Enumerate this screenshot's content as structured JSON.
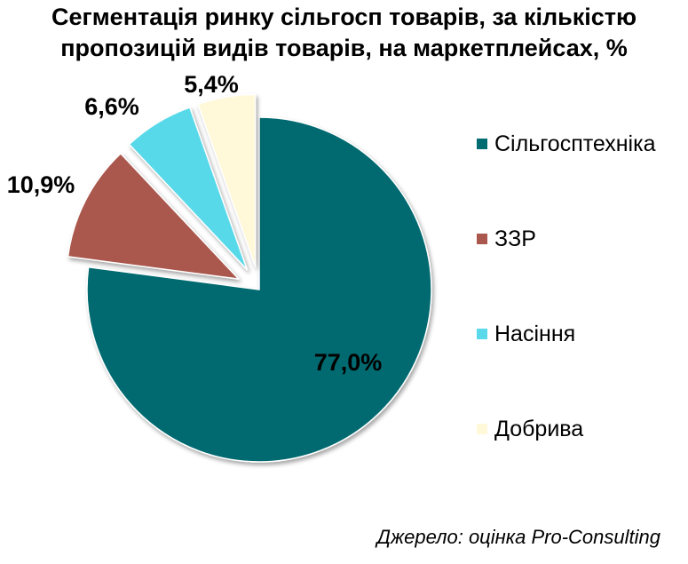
{
  "chart_data": {
    "type": "pie",
    "title_lines": [
      "Сегментація ринку сільгосп товарів, за кількістю",
      "пропозицій видів товарів, на маркетплейсах, %"
    ],
    "slices": [
      {
        "name": "Сільгосптехніка",
        "value": 77.0,
        "label": "77,0%",
        "color": "#006B70",
        "exploded": false
      },
      {
        "name": "ЗЗР",
        "value": 10.9,
        "label": "10,9%",
        "color": "#AA584D",
        "exploded": true
      },
      {
        "name": "Насіння",
        "value": 6.6,
        "label": "6,6%",
        "color": "#59D9EA",
        "exploded": true
      },
      {
        "name": "Добрива",
        "value": 5.4,
        "label": "5,4%",
        "color": "#FFF8D9",
        "exploded": true
      }
    ],
    "legend_position": "right"
  },
  "footer": {
    "source": "Джерело: оцінка Pro-Consulting"
  }
}
